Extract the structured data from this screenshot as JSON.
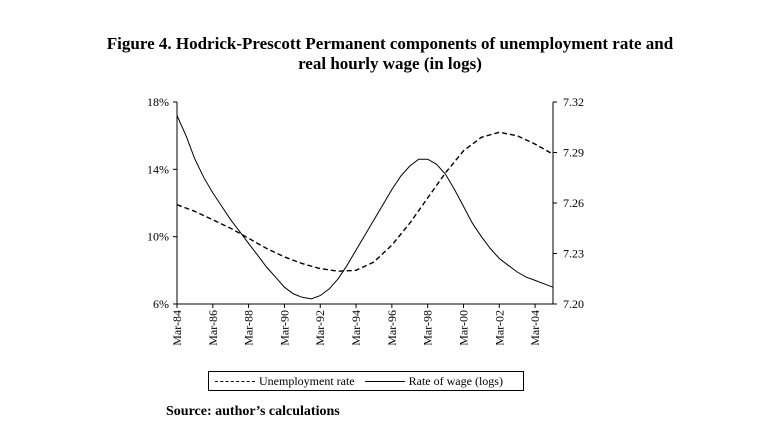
{
  "figure": {
    "title_line1": "Figure 4. Hodrick-Prescott Permanent components of unemployment rate and",
    "title_line2": "real hourly wage (in logs)",
    "source": "Source: author’s calculations"
  },
  "chart_data": {
    "type": "line",
    "title": "Figure 4. Hodrick-Prescott Permanent components of unemployment rate and real hourly wage (in logs)",
    "x_tick_labels": [
      "Mar-84",
      "Mar-86",
      "Mar-88",
      "Mar-90",
      "Mar-92",
      "Mar-94",
      "Mar-96",
      "Mar-98",
      "Mar-00",
      "Mar-02",
      "Mar-04"
    ],
    "x_range": [
      "Mar-84",
      "Mar-05"
    ],
    "y_left": {
      "ticks": [
        "6%",
        "10%",
        "14%",
        "18%"
      ],
      "range": [
        6,
        18
      ],
      "unit": "%"
    },
    "y_right": {
      "ticks": [
        "7.20",
        "7.23",
        "7.26",
        "7.29",
        "7.32"
      ],
      "range": [
        7.2,
        7.32
      ]
    },
    "grid": false,
    "legend": {
      "placement": "bottom",
      "entries": [
        {
          "label": "Unemployment rate",
          "style": "dashed"
        },
        {
          "label": "Rate of wage (logs)",
          "style": "solid"
        }
      ]
    },
    "series": [
      {
        "name": "Unemployment rate",
        "axis": "left",
        "style": "dashed",
        "x": [
          1984.0,
          1985.0,
          1986.0,
          1987.0,
          1988.0,
          1989.0,
          1990.0,
          1991.0,
          1992.0,
          1993.0,
          1994.0,
          1995.0,
          1996.0,
          1997.0,
          1998.0,
          1999.0,
          2000.0,
          2001.0,
          2002.0,
          2003.0,
          2004.0,
          2005.0
        ],
        "y": [
          11.9,
          11.5,
          11.0,
          10.5,
          9.9,
          9.3,
          8.8,
          8.4,
          8.1,
          7.95,
          8.0,
          8.5,
          9.5,
          10.8,
          12.3,
          13.8,
          15.1,
          15.9,
          16.2,
          16.0,
          15.5,
          14.9
        ]
      },
      {
        "name": "Rate of wage (logs)",
        "axis": "right",
        "style": "solid",
        "x": [
          1984.0,
          1984.5,
          1985.0,
          1985.5,
          1986.0,
          1986.5,
          1987.0,
          1987.5,
          1988.0,
          1988.5,
          1989.0,
          1989.5,
          1990.0,
          1990.5,
          1991.0,
          1991.5,
          1992.0,
          1992.5,
          1993.0,
          1993.5,
          1994.0,
          1994.5,
          1995.0,
          1995.5,
          1996.0,
          1996.5,
          1997.0,
          1997.5,
          1998.0,
          1998.5,
          1999.0,
          1999.5,
          2000.0,
          2000.5,
          2001.0,
          2001.5,
          2002.0,
          2002.5,
          2003.0,
          2003.5,
          2004.0,
          2004.5,
          2005.0
        ],
        "y": [
          7.312,
          7.3,
          7.286,
          7.275,
          7.266,
          7.258,
          7.25,
          7.243,
          7.236,
          7.229,
          7.222,
          7.216,
          7.21,
          7.206,
          7.204,
          7.203,
          7.205,
          7.209,
          7.215,
          7.223,
          7.232,
          7.241,
          7.25,
          7.259,
          7.268,
          7.276,
          7.282,
          7.286,
          7.286,
          7.283,
          7.277,
          7.268,
          7.258,
          7.248,
          7.24,
          7.233,
          7.227,
          7.223,
          7.219,
          7.216,
          7.214,
          7.212,
          7.21
        ]
      }
    ]
  }
}
